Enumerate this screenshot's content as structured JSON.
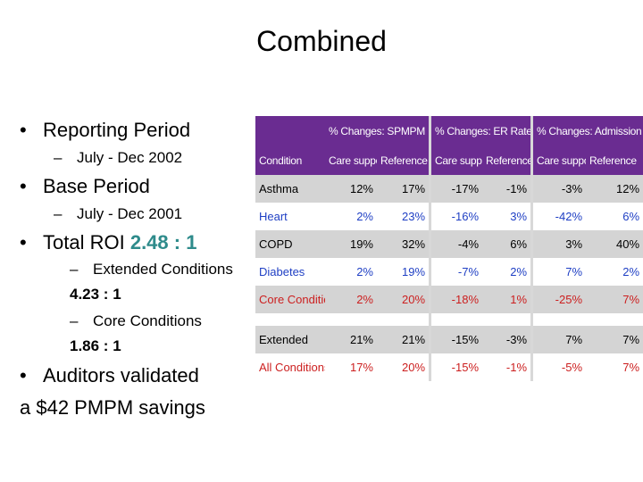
{
  "title": "Combined",
  "bullets": {
    "reporting_period": "Reporting Period",
    "reporting_period_value": "July - Dec 2002",
    "base_period": "Base Period",
    "base_period_value": "July - Dec 2001",
    "total_roi_label": "Total ROI",
    "total_roi_value": "2.48 : 1",
    "extended_label": "Extended Conditions",
    "extended_value": "4.23 : 1",
    "core_label": "Core Conditions",
    "core_value": "1.86 : 1",
    "auditors_line1": "Auditors validated",
    "auditors_line2": "a $42 PMPM savings"
  },
  "table": {
    "group_headers": [
      "% Changes: SPMPM",
      "% Changes: ER Rate",
      "% Changes: Admission Rate"
    ],
    "col_header_condition": "Condition",
    "sub_headers": [
      "Care support",
      "Reference",
      "Care support",
      "Reference",
      "Care support",
      "Reference"
    ],
    "rows": [
      {
        "condition": "Asthma",
        "values": [
          "12%",
          "17%",
          "-17%",
          "-1%",
          "-3%",
          "12%"
        ],
        "color": "#000000"
      },
      {
        "condition": "Heart",
        "values": [
          "2%",
          "23%",
          "-16%",
          "3%",
          "-42%",
          "6%"
        ],
        "color": "#1f3fc4"
      },
      {
        "condition": "COPD",
        "values": [
          "19%",
          "32%",
          "-4%",
          "6%",
          "3%",
          "40%"
        ],
        "color": "#000000"
      },
      {
        "condition": "Diabetes",
        "values": [
          "2%",
          "19%",
          "-7%",
          "2%",
          "7%",
          "2%"
        ],
        "color": "#1f3fc4"
      },
      {
        "condition": "Core Conditions",
        "values": [
          "2%",
          "20%",
          "-18%",
          "1%",
          "-25%",
          "7%"
        ],
        "color": "#cc1f1f"
      },
      {
        "condition": "Extended",
        "values": [
          "21%",
          "21%",
          "-15%",
          "-3%",
          "7%",
          "7%"
        ],
        "color": "#000000"
      },
      {
        "condition": "All Conditions",
        "values": [
          "17%",
          "20%",
          "-15%",
          "-1%",
          "-5%",
          "7%"
        ],
        "color": "#cc1f1f"
      }
    ]
  },
  "colors": {
    "accent": "#2e8b8b",
    "header_bg": "#6a2c91",
    "blue": "#1f3fc4",
    "red": "#cc1f1f"
  }
}
